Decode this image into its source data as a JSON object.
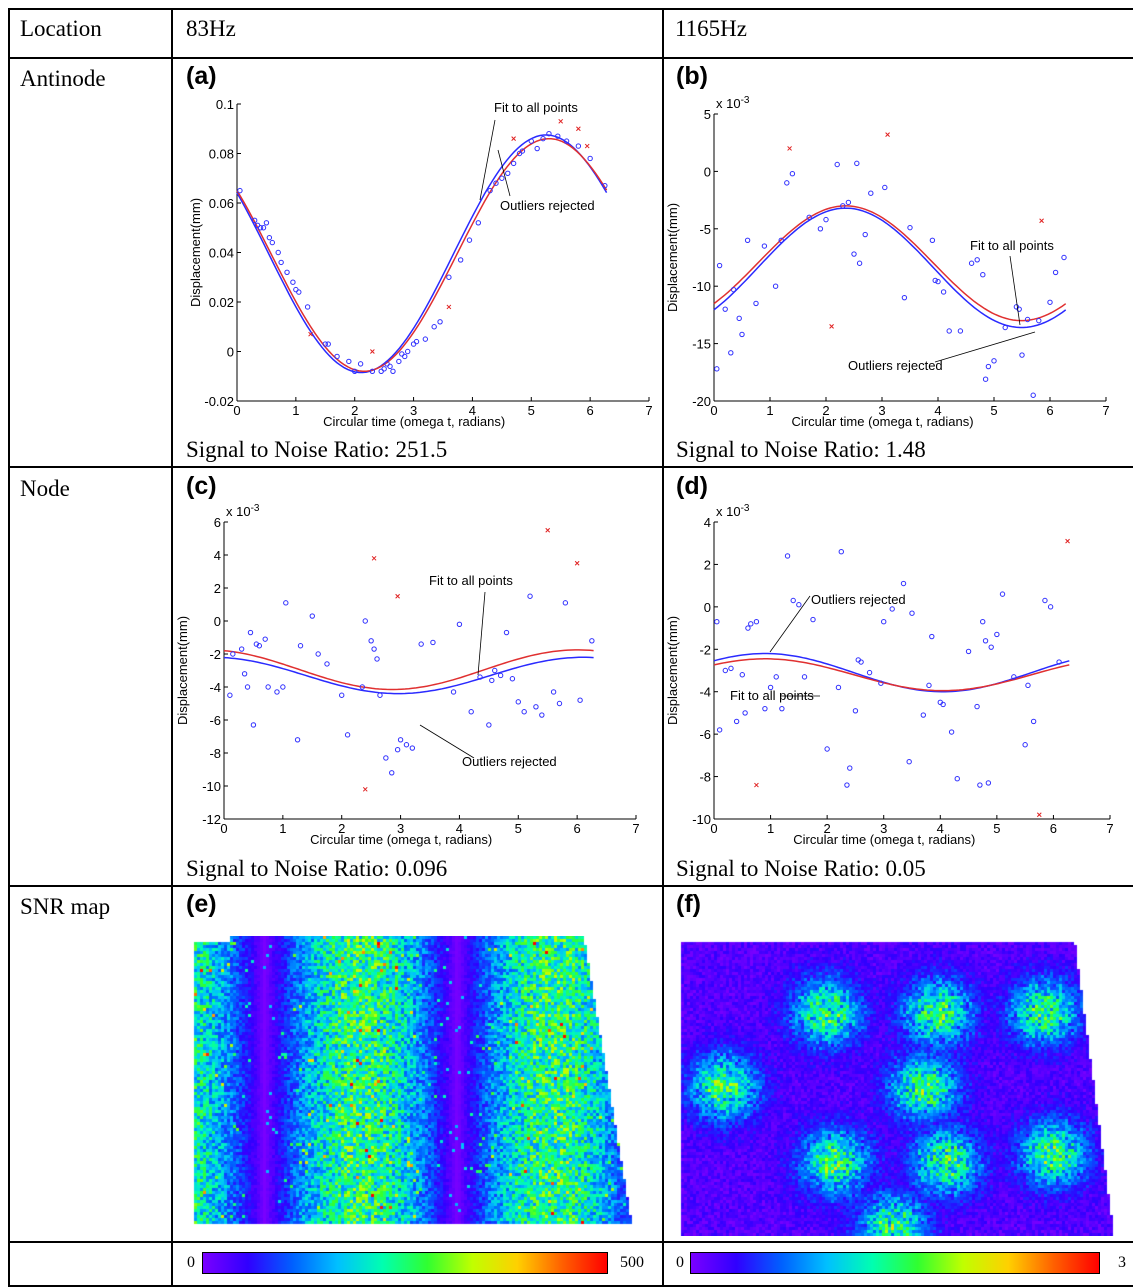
{
  "table": {
    "header": {
      "location": "Location",
      "col1": "83Hz",
      "col2": "1165Hz"
    },
    "rows": {
      "antinode": "Antinode",
      "node": "Node",
      "snr_map": "SNR map"
    }
  },
  "colors": {
    "fit_all": "#e03030",
    "outliers_rejected": "#2a2aff",
    "points": "#3030ff",
    "outlier_marks": "#e02020"
  },
  "chart_data": [
    {
      "panel": "(a)",
      "type": "scatter",
      "xlabel": "Circular time (omega t, radians)",
      "ylabel": "Displacement(mm)",
      "xlim": [
        0,
        7
      ],
      "ylim": [
        -0.02,
        0.1
      ],
      "xticks": [
        "0",
        "1",
        "2",
        "3",
        "4",
        "5",
        "6",
        "7"
      ],
      "yticks": [
        "-0.02",
        "0",
        "0.02",
        "0.04",
        "0.06",
        "0.08",
        "0.1"
      ],
      "y_multiplier": "",
      "annotations": [
        "Fit to all points",
        "Outliers rejected"
      ],
      "snr": "Signal to Noise Ratio: 251.5",
      "fit_all": {
        "offset": 0.039,
        "amp": 0.047,
        "phase": 5.3
      },
      "fit_rejected": {
        "offset": 0.0395,
        "amp": 0.048,
        "phase": 5.25
      },
      "points": [
        [
          0.05,
          0.065
        ],
        [
          0.3,
          0.053
        ],
        [
          0.35,
          0.051
        ],
        [
          0.4,
          0.05
        ],
        [
          0.45,
          0.05
        ],
        [
          0.5,
          0.052
        ],
        [
          0.55,
          0.046
        ],
        [
          0.6,
          0.044
        ],
        [
          0.7,
          0.04
        ],
        [
          0.75,
          0.036
        ],
        [
          0.85,
          0.032
        ],
        [
          0.95,
          0.028
        ],
        [
          1.0,
          0.025
        ],
        [
          1.05,
          0.024
        ],
        [
          1.2,
          0.018
        ],
        [
          1.5,
          0.003
        ],
        [
          1.55,
          0.003
        ],
        [
          1.7,
          -0.002
        ],
        [
          1.9,
          -0.004
        ],
        [
          2.0,
          -0.008
        ],
        [
          2.1,
          -0.005
        ],
        [
          2.3,
          -0.008
        ],
        [
          2.45,
          -0.008
        ],
        [
          2.5,
          -0.007
        ],
        [
          2.55,
          -0.005
        ],
        [
          2.6,
          -0.006
        ],
        [
          2.65,
          -0.008
        ],
        [
          2.75,
          -0.004
        ],
        [
          2.8,
          -0.001
        ],
        [
          2.85,
          -0.002
        ],
        [
          2.9,
          0.0
        ],
        [
          3.0,
          0.003
        ],
        [
          3.05,
          0.004
        ],
        [
          3.2,
          0.005
        ],
        [
          3.35,
          0.01
        ],
        [
          3.45,
          0.012
        ],
        [
          3.6,
          0.03
        ],
        [
          3.8,
          0.037
        ],
        [
          3.95,
          0.045
        ],
        [
          4.1,
          0.052
        ],
        [
          4.3,
          0.065
        ],
        [
          4.4,
          0.068
        ],
        [
          4.5,
          0.07
        ],
        [
          4.6,
          0.072
        ],
        [
          4.7,
          0.076
        ],
        [
          4.8,
          0.08
        ],
        [
          4.85,
          0.081
        ],
        [
          5.0,
          0.085
        ],
        [
          5.1,
          0.082
        ],
        [
          5.2,
          0.086
        ],
        [
          5.3,
          0.088
        ],
        [
          5.45,
          0.087
        ],
        [
          5.6,
          0.085
        ],
        [
          5.8,
          0.083
        ],
        [
          6.0,
          0.078
        ],
        [
          6.25,
          0.067
        ]
      ],
      "outliers": [
        [
          1.25,
          0.007
        ],
        [
          2.3,
          0.0
        ],
        [
          3.6,
          0.018
        ],
        [
          4.7,
          0.086
        ],
        [
          5.5,
          0.093
        ],
        [
          5.8,
          0.09
        ],
        [
          5.95,
          0.083
        ]
      ]
    },
    {
      "panel": "(b)",
      "type": "scatter",
      "xlabel": "Circular time (omega t, radians)",
      "ylabel": "Displacement(mm)",
      "xlim": [
        0,
        7
      ],
      "ylim": [
        -20,
        5
      ],
      "xticks": [
        "0",
        "1",
        "2",
        "3",
        "4",
        "5",
        "6",
        "7"
      ],
      "yticks": [
        "-20",
        "-15",
        "-10",
        "-5",
        "0",
        "5"
      ],
      "y_multiplier": "x 10-3",
      "annotations": [
        "Fit to all points",
        "Outliers rejected"
      ],
      "snr": "Signal to Noise Ratio: 1.48",
      "fit_all": {
        "offset": -8.0,
        "amp": 5.0,
        "phase": 2.35
      },
      "fit_rejected": {
        "offset": -8.4,
        "amp": 5.2,
        "phase": 2.35
      },
      "points": [
        [
          0.05,
          -17.2
        ],
        [
          0.1,
          -8.2
        ],
        [
          0.2,
          -12.0
        ],
        [
          0.3,
          -15.8
        ],
        [
          0.35,
          -10.3
        ],
        [
          0.45,
          -12.8
        ],
        [
          0.5,
          -14.2
        ],
        [
          0.6,
          -6.0
        ],
        [
          0.75,
          -11.5
        ],
        [
          0.9,
          -6.5
        ],
        [
          1.1,
          -10.0
        ],
        [
          1.2,
          -6.0
        ],
        [
          1.3,
          -1.0
        ],
        [
          1.4,
          -0.2
        ],
        [
          1.7,
          -4.0
        ],
        [
          1.9,
          -5.0
        ],
        [
          2.0,
          -4.2
        ],
        [
          2.2,
          0.6
        ],
        [
          2.3,
          -3.0
        ],
        [
          2.4,
          -2.7
        ],
        [
          2.5,
          -7.2
        ],
        [
          2.55,
          0.7
        ],
        [
          2.6,
          -8.0
        ],
        [
          2.7,
          -5.5
        ],
        [
          2.8,
          -1.9
        ],
        [
          3.05,
          -1.4
        ],
        [
          3.4,
          -11.0
        ],
        [
          3.5,
          -4.9
        ],
        [
          3.9,
          -6.0
        ],
        [
          3.95,
          -9.5
        ],
        [
          4.0,
          -9.6
        ],
        [
          4.1,
          -10.5
        ],
        [
          4.2,
          -13.9
        ],
        [
          4.4,
          -13.9
        ],
        [
          4.6,
          -8.0
        ],
        [
          4.7,
          -7.7
        ],
        [
          4.8,
          -9.0
        ],
        [
          4.85,
          -18.1
        ],
        [
          4.9,
          -17.0
        ],
        [
          5.0,
          -16.5
        ],
        [
          5.2,
          -13.6
        ],
        [
          5.4,
          -11.8
        ],
        [
          5.45,
          -12.0
        ],
        [
          5.5,
          -16.0
        ],
        [
          5.6,
          -12.9
        ],
        [
          5.7,
          -19.5
        ],
        [
          5.8,
          -13.0
        ],
        [
          6.0,
          -11.4
        ],
        [
          6.1,
          -8.8
        ],
        [
          6.25,
          -7.5
        ]
      ],
      "outliers": [
        [
          1.35,
          2.0
        ],
        [
          2.1,
          -13.5
        ],
        [
          3.1,
          3.2
        ],
        [
          5.85,
          -4.3
        ]
      ]
    },
    {
      "panel": "(c)",
      "type": "scatter",
      "xlabel": "Circular time (omega t, radians)",
      "ylabel": "Displacement(mm)",
      "xlim": [
        0,
        7
      ],
      "ylim": [
        -12,
        6
      ],
      "xticks": [
        "0",
        "1",
        "2",
        "3",
        "4",
        "5",
        "6",
        "7"
      ],
      "yticks": [
        "-12",
        "-10",
        "-8",
        "-6",
        "-4",
        "-2",
        "0",
        "2",
        "4",
        "6"
      ],
      "y_multiplier": "x 10-3",
      "annotations": [
        "Fit to all points",
        "Outliers rejected"
      ],
      "snr": "Signal to Noise Ratio: 0.096",
      "fit_all": {
        "offset": -2.95,
        "amp": 1.2,
        "phase": 6.0
      },
      "fit_rejected": {
        "offset": -3.3,
        "amp": 1.1,
        "phase": 6.1
      },
      "points": [
        [
          0.1,
          -4.5
        ],
        [
          0.15,
          -2.0
        ],
        [
          0.3,
          -1.7
        ],
        [
          0.35,
          -3.2
        ],
        [
          0.4,
          -4.0
        ],
        [
          0.45,
          -0.7
        ],
        [
          0.5,
          -6.3
        ],
        [
          0.55,
          -1.4
        ],
        [
          0.6,
          -1.5
        ],
        [
          0.7,
          -1.1
        ],
        [
          0.75,
          -4.0
        ],
        [
          0.9,
          -4.3
        ],
        [
          1.0,
          -4.0
        ],
        [
          1.05,
          1.1
        ],
        [
          1.25,
          -7.2
        ],
        [
          1.3,
          -1.5
        ],
        [
          1.5,
          0.3
        ],
        [
          1.6,
          -2.0
        ],
        [
          1.75,
          -2.6
        ],
        [
          2.0,
          -4.5
        ],
        [
          2.1,
          -6.9
        ],
        [
          2.35,
          -4.0
        ],
        [
          2.4,
          0.0
        ],
        [
          2.5,
          -1.2
        ],
        [
          2.55,
          -1.7
        ],
        [
          2.6,
          -2.3
        ],
        [
          2.65,
          -4.5
        ],
        [
          2.75,
          -8.3
        ],
        [
          2.85,
          -9.2
        ],
        [
          2.95,
          -7.8
        ],
        [
          3.0,
          -7.2
        ],
        [
          3.1,
          -7.5
        ],
        [
          3.2,
          -7.7
        ],
        [
          3.35,
          -1.4
        ],
        [
          3.55,
          -1.3
        ],
        [
          3.9,
          -4.3
        ],
        [
          4.0,
          -0.2
        ],
        [
          4.2,
          -5.5
        ],
        [
          4.35,
          -3.4
        ],
        [
          4.5,
          -6.3
        ],
        [
          4.55,
          -3.6
        ],
        [
          4.6,
          -3.0
        ],
        [
          4.7,
          -3.3
        ],
        [
          4.8,
          -0.7
        ],
        [
          4.9,
          -3.5
        ],
        [
          5.0,
          -4.9
        ],
        [
          5.1,
          -5.5
        ],
        [
          5.2,
          1.5
        ],
        [
          5.3,
          -5.2
        ],
        [
          5.4,
          -5.7
        ],
        [
          5.6,
          -4.3
        ],
        [
          5.7,
          -5.0
        ],
        [
          5.8,
          1.1
        ],
        [
          6.05,
          -4.8
        ],
        [
          6.25,
          -1.2
        ]
      ],
      "outliers": [
        [
          2.4,
          -10.2
        ],
        [
          2.55,
          3.8
        ],
        [
          2.95,
          1.5
        ],
        [
          5.5,
          5.5
        ],
        [
          6.0,
          3.5
        ]
      ]
    },
    {
      "panel": "(d)",
      "type": "scatter",
      "xlabel": "Circular time (omega t, radians)",
      "ylabel": "Displacement(mm)",
      "xlim": [
        0,
        7
      ],
      "ylim": [
        -10,
        4
      ],
      "xticks": [
        "0",
        "1",
        "2",
        "3",
        "4",
        "5",
        "6",
        "7"
      ],
      "yticks": [
        "-10",
        "-8",
        "-6",
        "-4",
        "-2",
        "0",
        "2",
        "4"
      ],
      "y_multiplier": "x 10-3",
      "annotations": [
        "Outliers rejected",
        "Fit to all points"
      ],
      "snr": "Signal to Noise Ratio: 0.05",
      "fit_all": {
        "offset": -3.2,
        "amp": 0.75,
        "phase": 0.9
      },
      "fit_rejected": {
        "offset": -3.1,
        "amp": 0.9,
        "phase": 0.9
      },
      "points": [
        [
          0.05,
          -0.7
        ],
        [
          0.1,
          -5.8
        ],
        [
          0.2,
          -3.0
        ],
        [
          0.3,
          -2.9
        ],
        [
          0.4,
          -5.4
        ],
        [
          0.5,
          -3.2
        ],
        [
          0.55,
          -5.0
        ],
        [
          0.6,
          -1.0
        ],
        [
          0.65,
          -0.8
        ],
        [
          0.75,
          -0.7
        ],
        [
          0.9,
          -4.8
        ],
        [
          1.0,
          -3.8
        ],
        [
          1.1,
          -3.3
        ],
        [
          1.2,
          -4.8
        ],
        [
          1.3,
          2.4
        ],
        [
          1.4,
          0.3
        ],
        [
          1.5,
          0.1
        ],
        [
          1.6,
          -3.3
        ],
        [
          1.75,
          -0.6
        ],
        [
          2.0,
          -6.7
        ],
        [
          2.2,
          -3.8
        ],
        [
          2.25,
          2.6
        ],
        [
          2.35,
          -8.4
        ],
        [
          2.4,
          -7.6
        ],
        [
          2.5,
          -4.9
        ],
        [
          2.55,
          -2.5
        ],
        [
          2.6,
          -2.6
        ],
        [
          2.75,
          -3.1
        ],
        [
          2.95,
          -3.6
        ],
        [
          3.0,
          -0.7
        ],
        [
          3.15,
          -0.1
        ],
        [
          3.35,
          1.1
        ],
        [
          3.45,
          -7.3
        ],
        [
          3.5,
          -0.3
        ],
        [
          3.7,
          -5.1
        ],
        [
          3.8,
          -3.7
        ],
        [
          3.85,
          -1.4
        ],
        [
          4.0,
          -4.5
        ],
        [
          4.05,
          -4.6
        ],
        [
          4.2,
          -5.9
        ],
        [
          4.3,
          -8.1
        ],
        [
          4.5,
          -2.1
        ],
        [
          4.65,
          -4.7
        ],
        [
          4.7,
          -8.4
        ],
        [
          4.75,
          -0.7
        ],
        [
          4.8,
          -1.6
        ],
        [
          4.85,
          -8.3
        ],
        [
          4.9,
          -1.9
        ],
        [
          5.0,
          -1.3
        ],
        [
          5.1,
          0.6
        ],
        [
          5.3,
          -3.3
        ],
        [
          5.5,
          -6.5
        ],
        [
          5.55,
          -3.7
        ],
        [
          5.65,
          -5.4
        ],
        [
          5.85,
          0.3
        ],
        [
          5.95,
          0.0
        ],
        [
          6.1,
          -2.6
        ]
      ],
      "outliers": [
        [
          0.75,
          -8.4
        ],
        [
          5.75,
          -9.8
        ],
        [
          6.25,
          3.1
        ]
      ]
    }
  ],
  "maps": [
    {
      "panel": "(e)",
      "colorbar_min": "0",
      "colorbar_max": "500"
    },
    {
      "panel": "(f)",
      "colorbar_min": "0",
      "colorbar_max": "3"
    }
  ]
}
